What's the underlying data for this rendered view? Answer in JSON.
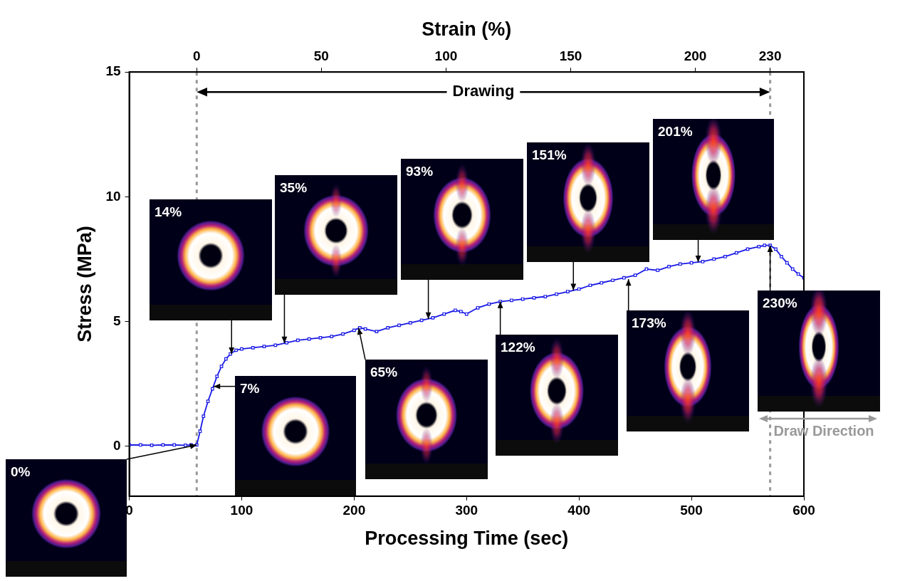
{
  "chart_data": {
    "type": "line",
    "x_label": "Processing Time (sec)",
    "y_label": "Stress (MPa)",
    "x2_label": "Strain (%)",
    "xlim": [
      0,
      600
    ],
    "xticks": [
      0,
      100,
      200,
      300,
      400,
      500,
      600
    ],
    "ylim": [
      -2,
      15
    ],
    "yticks": [
      0,
      5,
      10,
      15
    ],
    "x2lim": [
      -27.06,
      243.53
    ],
    "x2ticks": [
      0,
      50,
      100,
      150,
      200,
      230
    ],
    "grid": false,
    "legend": false,
    "series": [
      {
        "color": "#1a1ae6",
        "marker": "square",
        "line_style": "solid",
        "x": [
          0,
          10,
          20,
          30,
          40,
          50,
          55,
          60,
          63,
          66,
          70,
          74,
          78,
          82,
          86,
          90,
          95,
          100,
          110,
          120,
          130,
          140,
          150,
          160,
          170,
          180,
          190,
          200,
          205,
          210,
          220,
          230,
          240,
          250,
          260,
          270,
          280,
          290,
          295,
          300,
          310,
          320,
          330,
          340,
          350,
          360,
          370,
          380,
          390,
          400,
          410,
          420,
          430,
          440,
          450,
          460,
          470,
          480,
          490,
          500,
          510,
          520,
          530,
          540,
          550,
          560,
          565,
          570,
          575,
          580,
          585,
          590,
          595,
          600
        ],
        "values": [
          0.05,
          0.05,
          0.04,
          0.05,
          0.05,
          0.04,
          0.05,
          0.05,
          0.6,
          1.2,
          1.8,
          2.3,
          2.8,
          3.2,
          3.5,
          3.7,
          3.85,
          3.9,
          3.95,
          4.0,
          4.05,
          4.15,
          4.25,
          4.3,
          4.35,
          4.4,
          4.5,
          4.65,
          4.75,
          4.7,
          4.6,
          4.75,
          4.85,
          4.95,
          5.05,
          5.15,
          5.3,
          5.45,
          5.4,
          5.3,
          5.55,
          5.7,
          5.8,
          5.85,
          5.9,
          5.95,
          6.0,
          6.1,
          6.2,
          6.3,
          6.45,
          6.55,
          6.65,
          6.75,
          6.85,
          7.1,
          7.05,
          7.2,
          7.3,
          7.35,
          7.4,
          7.5,
          7.6,
          7.75,
          7.9,
          8.0,
          8.05,
          8.05,
          7.9,
          7.6,
          7.35,
          7.1,
          6.9,
          6.75
        ]
      }
    ],
    "vlines": [
      60,
      570
    ],
    "drawing": {
      "label": "Drawing",
      "from": 60,
      "to": 570,
      "y": 14.2
    },
    "annotations": [
      {
        "text": "0%",
        "x": 60,
        "y": 0.05
      },
      {
        "text": "7%",
        "x": 75,
        "y": 2.4
      },
      {
        "text": "14%",
        "x": 91,
        "y": 3.7
      },
      {
        "text": "35%",
        "x": 138,
        "y": 4.13
      },
      {
        "text": "65%",
        "x": 204,
        "y": 4.74
      },
      {
        "text": "93%",
        "x": 266,
        "y": 5.1
      },
      {
        "text": "122%",
        "x": 330,
        "y": 5.8
      },
      {
        "text": "151%",
        "x": 395,
        "y": 6.25
      },
      {
        "text": "173%",
        "x": 444,
        "y": 6.7
      },
      {
        "text": "201%",
        "x": 506,
        "y": 7.38
      },
      {
        "text": "230%",
        "x": 570,
        "y": 8.05
      }
    ],
    "draw_direction_label": "Draw Direction"
  }
}
